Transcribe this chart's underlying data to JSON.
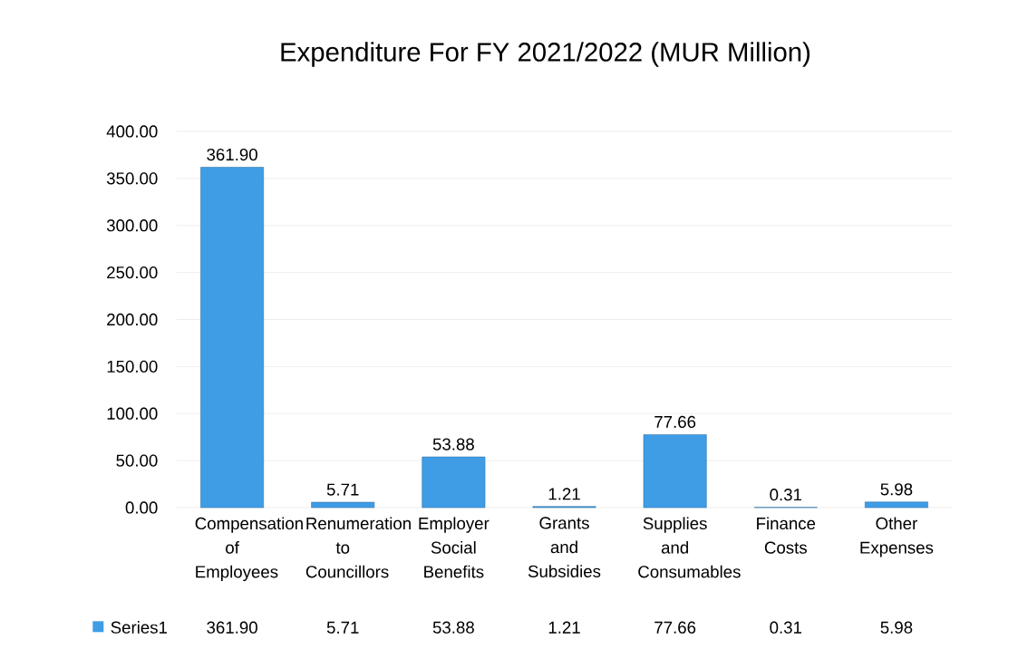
{
  "chart_data": {
    "type": "bar",
    "title": "Expenditure For FY 2021/2022 (MUR Million)",
    "categories": [
      "Compensation of Employees",
      "Renumeration to Councillors",
      "Employer Social Benefits",
      "Grants and Subsidies",
      "Supplies and Consumables",
      "Finance Costs",
      "Other Expenses"
    ],
    "series": [
      {
        "name": "Series1",
        "color": "#3f9de6",
        "values": [
          361.9,
          5.71,
          53.88,
          1.21,
          77.66,
          0.31,
          5.98
        ],
        "value_labels": [
          "361.90",
          "5.71",
          "53.88",
          "1.21",
          "77.66",
          "0.31",
          "5.98"
        ]
      }
    ],
    "ylim": [
      0,
      400
    ],
    "yticks": [
      {
        "value": 0,
        "label": "0.00"
      },
      {
        "value": 50,
        "label": "50.00"
      },
      {
        "value": 100,
        "label": "100.00"
      },
      {
        "value": 150,
        "label": "150.00"
      },
      {
        "value": 200,
        "label": "200.00"
      },
      {
        "value": 250,
        "label": "250.00"
      },
      {
        "value": 300,
        "label": "300.00"
      },
      {
        "value": 350,
        "label": "350.00"
      },
      {
        "value": 400,
        "label": "400.00"
      }
    ],
    "grid": "y",
    "legend": "bottom"
  }
}
